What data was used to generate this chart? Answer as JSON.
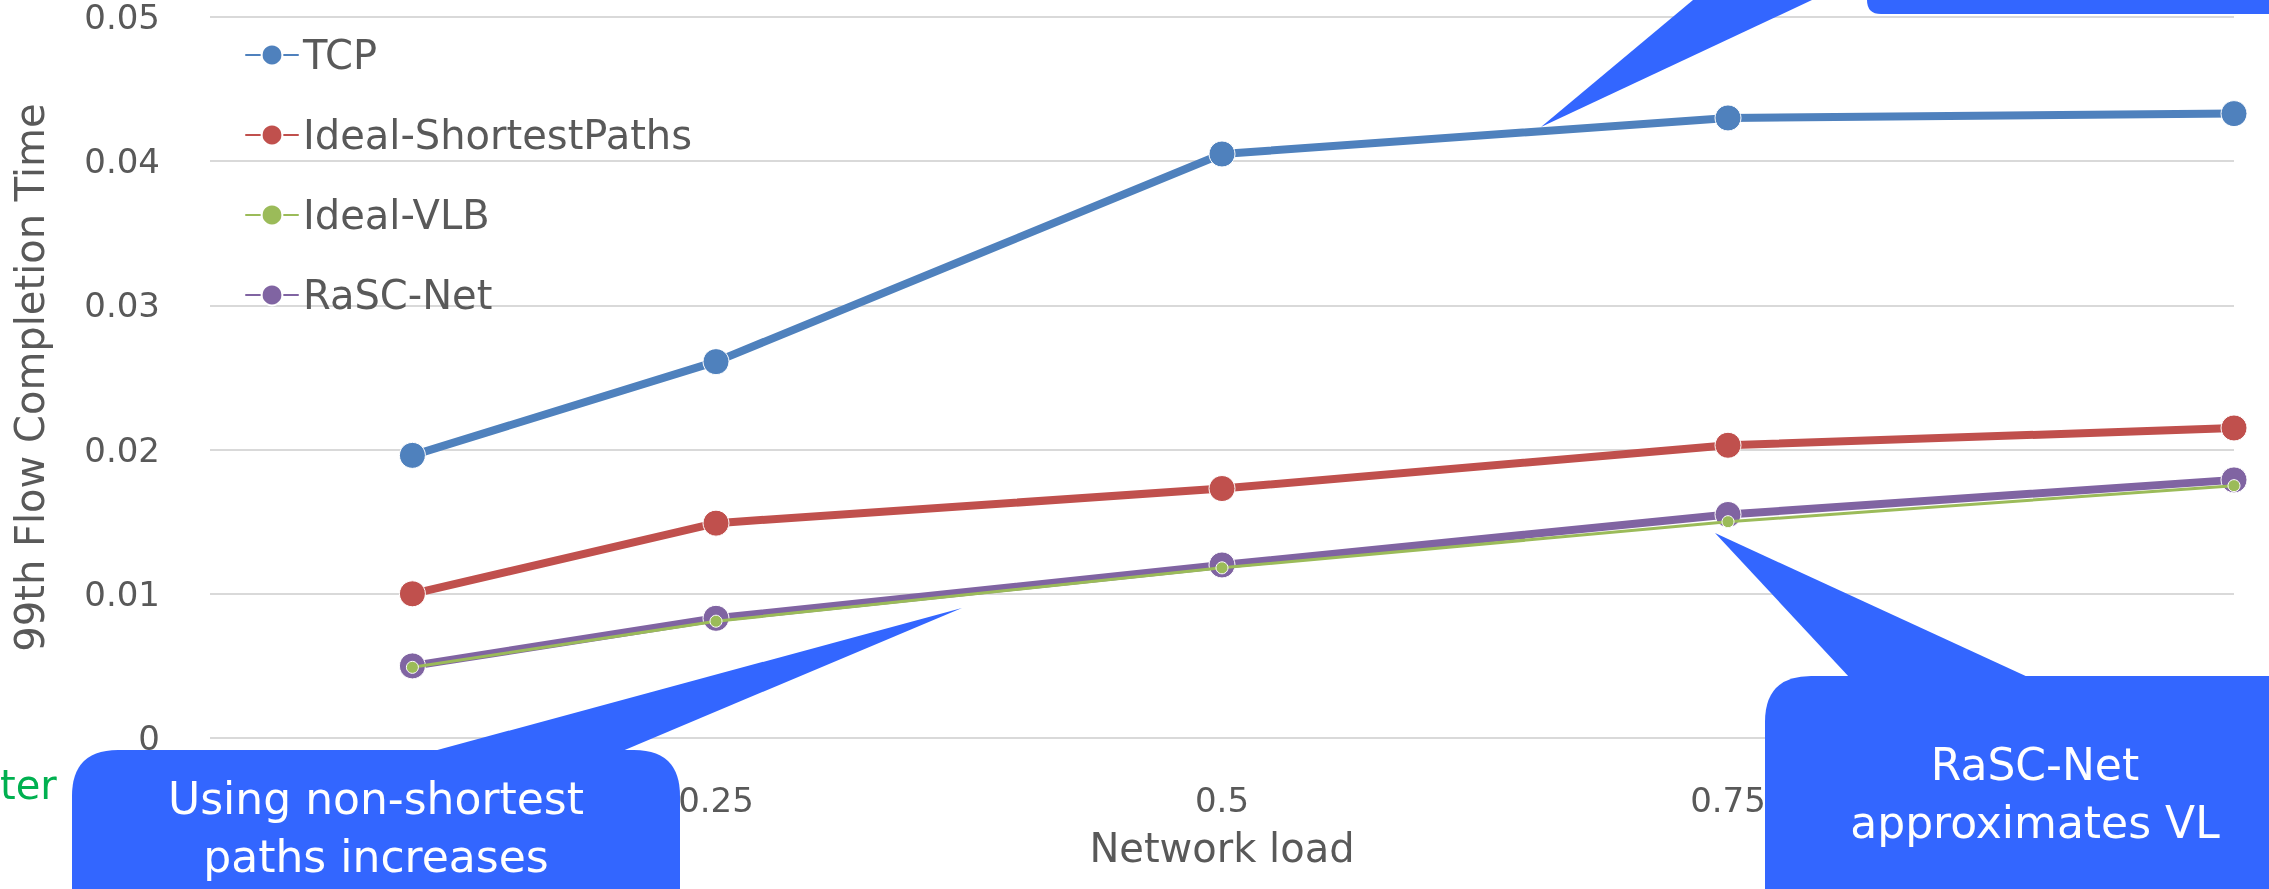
{
  "chart_data": {
    "type": "line",
    "ylabel": "99th Flow Completion Time",
    "xlabel": "Network load",
    "x": [
      0.1,
      0.25,
      0.5,
      0.75,
      1.0
    ],
    "xlim": [
      0,
      1
    ],
    "xticks": [
      0.25,
      0.5,
      0.75
    ],
    "ylim": [
      0,
      0.05
    ],
    "yticks": [
      0,
      0.01,
      0.02,
      0.03,
      0.04,
      0.05
    ],
    "series": [
      {
        "name": "TCP",
        "color": "#4f81bd",
        "values": [
          0.0196,
          0.0261,
          0.0405,
          0.043,
          0.0433
        ]
      },
      {
        "name": "Ideal-ShortestPaths",
        "color": "#c0504d",
        "values": [
          0.01,
          0.0149,
          0.0173,
          0.0203,
          0.0215
        ]
      },
      {
        "name": "Ideal-VLB",
        "color": "#9bbb59",
        "values": [
          0.0049,
          0.0081,
          0.0118,
          0.015,
          0.0175
        ]
      },
      {
        "name": "RaSC-Net",
        "color": "#8064a2",
        "values": [
          0.005,
          0.0083,
          0.012,
          0.0155,
          0.0179
        ]
      }
    ],
    "grid": "y",
    "legend": "top left",
    "marker": "circle",
    "line_style": "solid",
    "annotations": [
      "ter",
      "Using non-shortest paths increases",
      "RaSC-Net approximates VL"
    ]
  }
}
